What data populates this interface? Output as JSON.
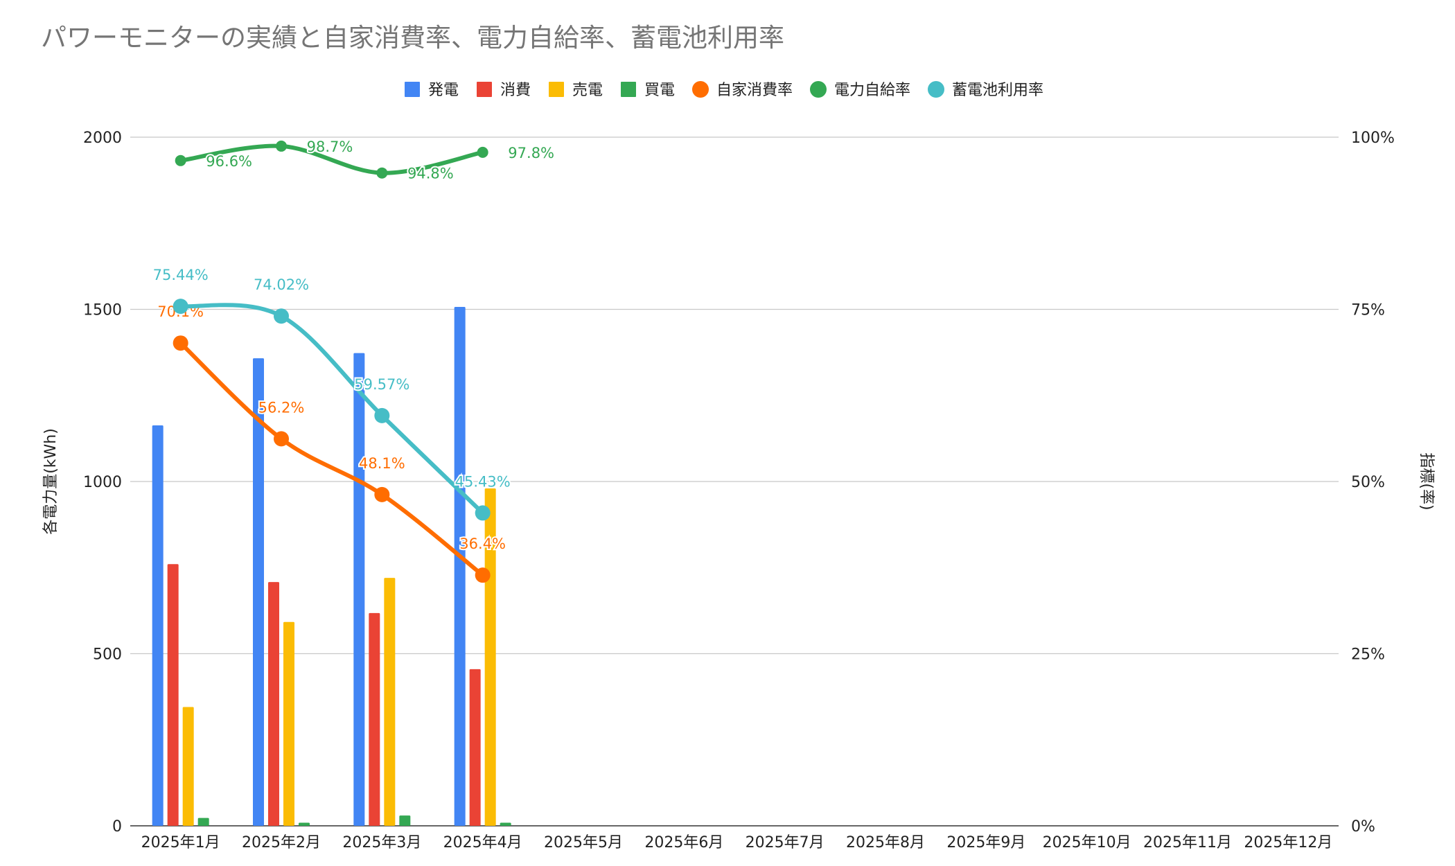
{
  "title": "パワーモニターの実績と自家消費率、電力自給率、蓄電池利用率",
  "chart_data": {
    "type": "bar",
    "categories": [
      "2025年1月",
      "2025年2月",
      "2025年3月",
      "2025年4月",
      "2025年5月",
      "2025年6月",
      "2025年7月",
      "2025年8月",
      "2025年9月",
      "2025年10月",
      "2025年11月",
      "2025年12月"
    ],
    "ylabel": "各電力量(kWh)",
    "y2label": "指標(率)",
    "ylim": [
      0,
      2000
    ],
    "y_ticks": [
      "0",
      "500",
      "1000",
      "1500",
      "2000"
    ],
    "y2lim": [
      0,
      100
    ],
    "y2_ticks": [
      "0%",
      "25%",
      "50%",
      "75%",
      "100%"
    ],
    "grid": true,
    "legend_position": "top",
    "bar_series": [
      {
        "name": "発電",
        "color": "#4285f4",
        "values": [
          1163,
          1358,
          1373,
          1507,
          null,
          null,
          null,
          null,
          null,
          null,
          null,
          null
        ]
      },
      {
        "name": "消費",
        "color": "#ea4335",
        "values": [
          760,
          708,
          618,
          455,
          null,
          null,
          null,
          null,
          null,
          null,
          null,
          null
        ]
      },
      {
        "name": "売電",
        "color": "#fbbc04",
        "values": [
          345,
          592,
          720,
          980,
          null,
          null,
          null,
          null,
          null,
          null,
          null,
          null
        ]
      },
      {
        "name": "買電",
        "color": "#34a853",
        "values": [
          23,
          9,
          30,
          9,
          null,
          null,
          null,
          null,
          null,
          null,
          null,
          null
        ]
      }
    ],
    "line_series": [
      {
        "name": "自家消費率",
        "color": "#ff6d01",
        "values": [
          70.1,
          56.2,
          48.1,
          36.4
        ],
        "labels": [
          "70.1%",
          "56.2%",
          "48.1%",
          "36.4%"
        ]
      },
      {
        "name": "電力自給率",
        "color": "#34a853",
        "values": [
          96.6,
          98.7,
          94.8,
          97.8
        ],
        "labels": [
          "96.6%",
          "98.7%",
          "94.8%",
          "97.8%"
        ]
      },
      {
        "name": "蓄電池利用率",
        "color": "#46bdc6",
        "values": [
          75.44,
          74.02,
          59.57,
          45.43
        ],
        "labels": [
          "75.44%",
          "74.02%",
          "59.57%",
          "45.43%"
        ]
      }
    ]
  }
}
